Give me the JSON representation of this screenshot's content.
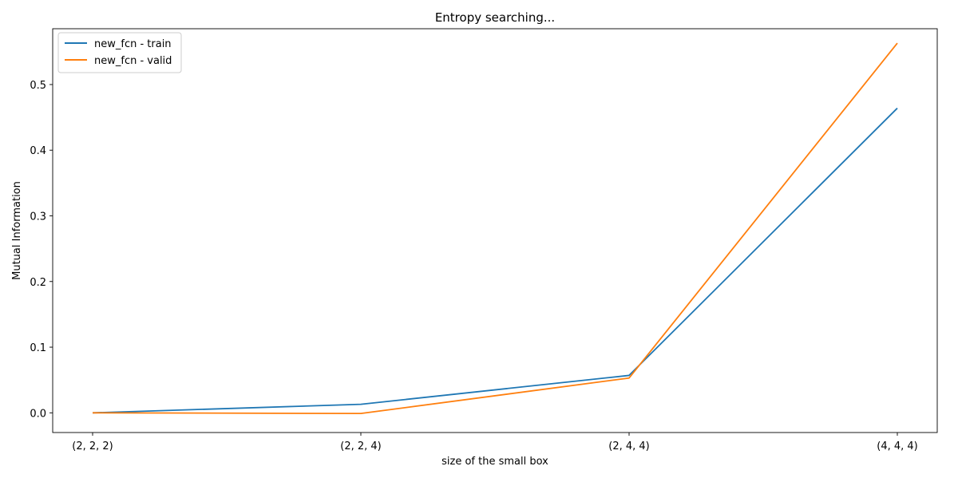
{
  "chart_data": {
    "type": "line",
    "title": "Entropy searching...",
    "xlabel": "size of the small box",
    "ylabel": "Mutual Information",
    "categories": [
      "(2, 2, 2)",
      "(2, 2, 4)",
      "(2, 4, 4)",
      "(4, 4, 4)"
    ],
    "yticks": [
      0.0,
      0.1,
      0.2,
      0.3,
      0.4,
      0.5
    ],
    "ytick_labels": [
      "0.0",
      "0.1",
      "0.2",
      "0.3",
      "0.4",
      "0.5"
    ],
    "ylim": [
      -0.03,
      0.585
    ],
    "grid": false,
    "legend_position": "top-left",
    "series": [
      {
        "name": "new_fcn - train",
        "color": "#1f77b4",
        "values": [
          0.0,
          0.013,
          0.057,
          0.464
        ]
      },
      {
        "name": "new_fcn - valid",
        "color": "#ff7f0e",
        "values": [
          0.0,
          -0.001,
          0.053,
          0.563
        ]
      }
    ]
  }
}
